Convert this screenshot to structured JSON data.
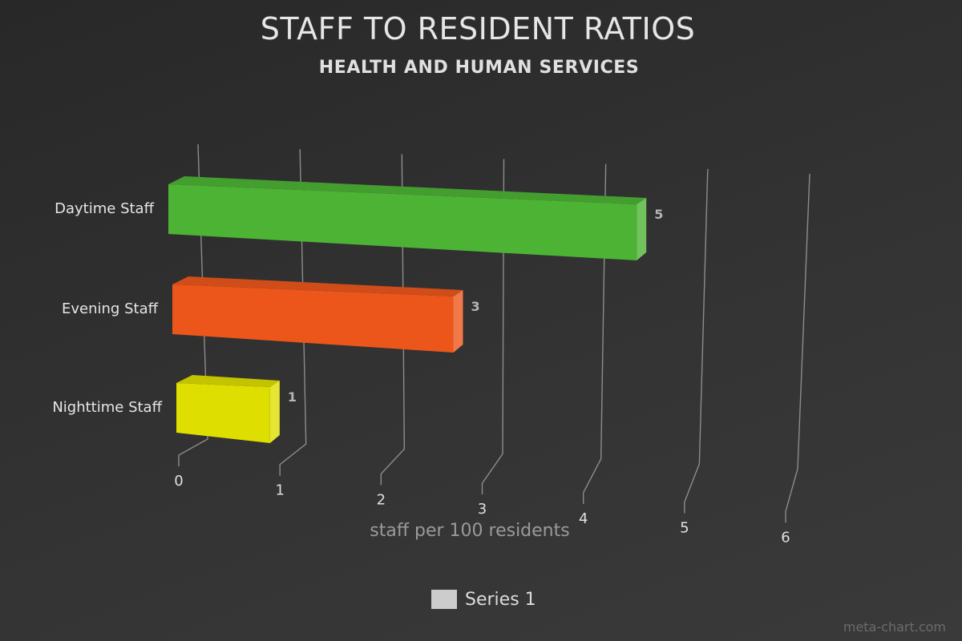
{
  "chart_data": {
    "type": "bar",
    "orientation": "horizontal",
    "style": "3d",
    "title": "STAFF TO RESIDENT RATIOS",
    "subtitle": "HEALTH AND HUMAN SERVICES",
    "xlabel": "staff per 100 residents",
    "xlim": [
      0,
      6
    ],
    "x_ticks": [
      "0",
      "1",
      "2",
      "3",
      "4",
      "5",
      "6"
    ],
    "grid": true,
    "legend_position": "bottom-center",
    "categories": [
      "Daytime Staff",
      "Evening Staff",
      "Nighttime Staff"
    ],
    "series": [
      {
        "name": "Series 1",
        "values": [
          5,
          3,
          1
        ],
        "data_labels": [
          "5",
          "3",
          "1"
        ],
        "colors": [
          "#4db335",
          "#ec561b",
          "#dede00"
        ]
      }
    ],
    "legend_color": "#cccccc"
  },
  "footer": {
    "credit": "meta-chart.com"
  }
}
